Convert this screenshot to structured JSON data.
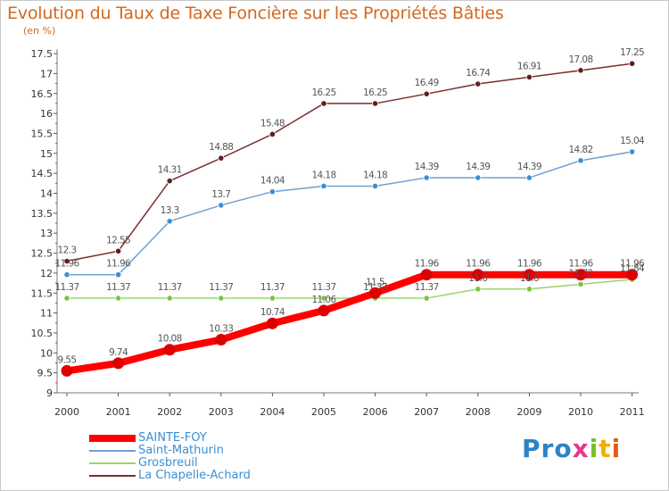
{
  "chart_data": {
    "type": "line",
    "title": "Evolution du Taux de Taxe Foncière sur les Propriétés Bâties",
    "unit_label": "(en %)",
    "categories": [
      "2000",
      "2001",
      "2002",
      "2003",
      "2004",
      "2005",
      "2006",
      "2007",
      "2008",
      "2009",
      "2010",
      "2011"
    ],
    "ylim": [
      9,
      17.5
    ],
    "yticks": [
      "9",
      "9.5",
      "10",
      "10.5",
      "11",
      "11.5",
      "12",
      "12.5",
      "13",
      "13.5",
      "14",
      "14.5",
      "15",
      "15.5",
      "16",
      "16.5",
      "17",
      "17.5"
    ],
    "grid": false,
    "legend_position": "bottom-left",
    "series": [
      {
        "name": "SAINTE-FOY",
        "color": "#ff0000",
        "marker": "#dd0000",
        "width": 8,
        "values": [
          9.55,
          9.74,
          10.08,
          10.33,
          10.74,
          11.06,
          11.5,
          11.96,
          11.96,
          11.96,
          11.96,
          11.96
        ],
        "labels": [
          "9.55",
          "9.74",
          "10.08",
          "10.33",
          "10.74",
          "11.06",
          "11.5",
          "11.96",
          "11.96",
          "11.96",
          "11.96",
          "11.96"
        ]
      },
      {
        "name": "Saint-Mathurin",
        "color": "#6fa1cf",
        "marker": "#3a8fd6",
        "width": 1.5,
        "values": [
          11.96,
          11.96,
          13.3,
          13.7,
          14.04,
          14.18,
          14.18,
          14.39,
          14.39,
          14.39,
          14.82,
          15.04
        ],
        "labels": [
          "11.96",
          "11.96",
          "13.3",
          "13.7",
          "14.04",
          "14.18",
          "14.18",
          "14.39",
          "14.39",
          "14.39",
          "14.82",
          "15.04"
        ]
      },
      {
        "name": "Grosbreuil",
        "color": "#9bd56c",
        "marker": "#7cc440",
        "width": 1.5,
        "values": [
          11.37,
          11.37,
          11.37,
          11.37,
          11.37,
          11.37,
          11.37,
          11.37,
          11.6,
          11.6,
          11.72,
          11.84
        ],
        "labels": [
          "11.37",
          "11.37",
          "11.37",
          "11.37",
          "11.37",
          "11.37",
          "11.37",
          "11.37",
          "11.6",
          "11.6",
          "11.72",
          "11.84"
        ]
      },
      {
        "name": "La Chapelle-Achard",
        "color": "#7b2d2d",
        "marker": "#5e1f1f",
        "width": 1.5,
        "values": [
          12.3,
          12.55,
          14.31,
          14.88,
          15.48,
          16.25,
          16.25,
          16.49,
          16.74,
          16.91,
          17.08,
          17.25
        ],
        "labels": [
          "12.3",
          "12.55",
          "14.31",
          "14.88",
          "15.48",
          "16.25",
          "16.25",
          "16.49",
          "16.74",
          "16.91",
          "17.08",
          "17.25"
        ]
      }
    ]
  },
  "brand": {
    "p1": "Pro",
    "p2": "x",
    "p3": "i",
    "p4": "t",
    "p5": "i"
  }
}
